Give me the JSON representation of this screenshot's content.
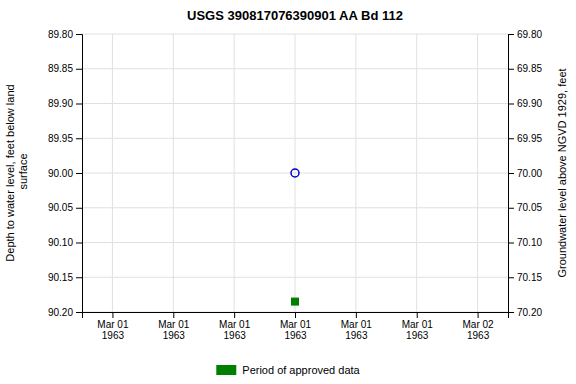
{
  "chart_data": {
    "type": "scatter",
    "title": "USGS 390817076390901 AA Bd 112",
    "ylabel": "Depth to water level, feet below land\n surface",
    "y2label": "Groundwater level above NGVD 1929, feet",
    "categories": [
      "Mar 01\n1963",
      "Mar 01\n1963",
      "Mar 01\n1963",
      "Mar 01\n1963",
      "Mar 01\n1963",
      "Mar 01\n1963",
      "Mar 02\n1963"
    ],
    "series": [
      {
        "color": "#0000cc",
        "marker": "circle",
        "values": [
          null,
          null,
          null,
          90.0,
          null,
          null,
          null
        ]
      },
      {
        "name": "Period of approved data",
        "color": "#008000",
        "marker": "square",
        "values": [
          null,
          null,
          null,
          90.185,
          null,
          null,
          null
        ]
      }
    ],
    "ylim": [
      90.2,
      89.8
    ],
    "yticks": [
      {
        "value": 89.8,
        "label": "89.80"
      },
      89.85,
      {
        "value": 89.9,
        "label": "89.90"
      },
      89.95,
      {
        "value": 90.0,
        "label": "90.00"
      },
      90.05,
      {
        "value": 90.1,
        "label": "90.10"
      },
      90.15,
      {
        "value": 90.2,
        "label": "90.20"
      }
    ],
    "y2lim": [
      70.2,
      69.8
    ],
    "y2ticks": [
      {
        "value": 69.8,
        "label": "69.80"
      },
      69.85,
      {
        "value": 69.9,
        "label": "69.90"
      },
      69.95,
      {
        "value": 70.0,
        "label": "70.00"
      },
      70.05,
      {
        "value": 70.1,
        "label": "70.10"
      },
      70.15,
      {
        "value": 70.2,
        "label": "70.20"
      }
    ],
    "grid": true,
    "legend": "bottom"
  }
}
